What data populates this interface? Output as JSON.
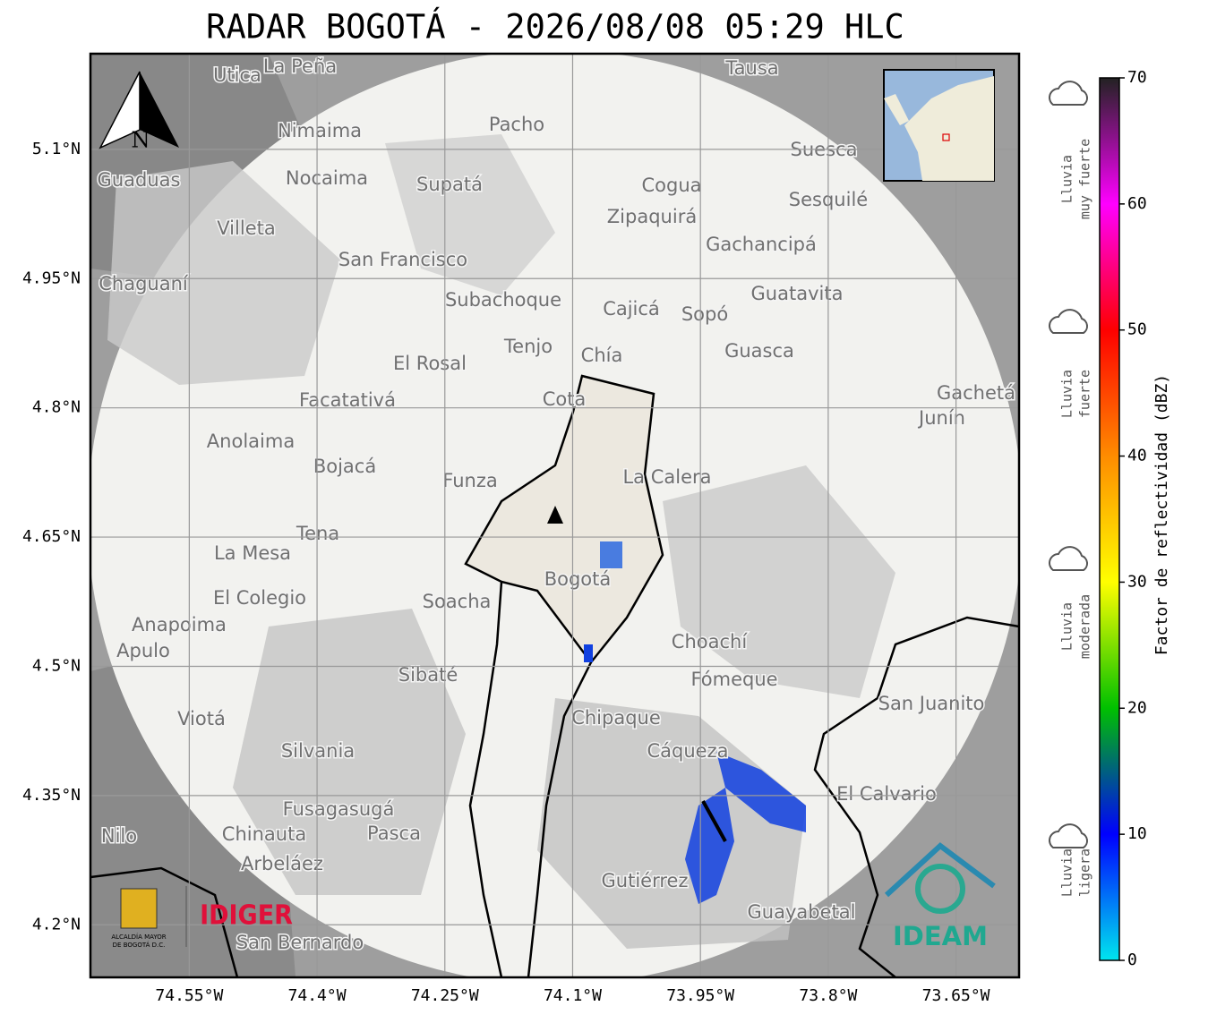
{
  "title": "RADAR BOGOTÁ - 2026/08/08 05:29 HLC",
  "map": {
    "lonlim": [
      -74.666,
      -73.576
    ],
    "latlim": [
      4.139,
      5.211
    ],
    "lat_ticks": [
      {
        "value": 5.1,
        "label": "5.1°N"
      },
      {
        "value": 4.95,
        "label": "4.95°N"
      },
      {
        "value": 4.8,
        "label": "4.8°N"
      },
      {
        "value": 4.65,
        "label": "4.65°N"
      },
      {
        "value": 4.5,
        "label": "4.5°N"
      },
      {
        "value": 4.35,
        "label": "4.35°N"
      },
      {
        "value": 4.2,
        "label": "4.2°N"
      }
    ],
    "lon_ticks": [
      {
        "value": -74.55,
        "label": "74.55°W"
      },
      {
        "value": -74.4,
        "label": "74.4°W"
      },
      {
        "value": -74.25,
        "label": "74.25°W"
      },
      {
        "value": -74.1,
        "label": "74.1°W"
      },
      {
        "value": -73.95,
        "label": "73.95°W"
      },
      {
        "value": -73.8,
        "label": "73.8°W"
      },
      {
        "value": -73.65,
        "label": "73.65°W"
      }
    ],
    "north": "N",
    "places": [
      "La Peña",
      "Utica",
      "Tausa",
      "Pacho",
      "Nimaima",
      "Guaduas",
      "Nocaima",
      "Supatá",
      "Suesca",
      "Cogua",
      "Zipaquirá",
      "Sesquilé",
      "Villeta",
      "Gachancipá",
      "San Francisco",
      "Chaguaní",
      "Guatavita",
      "Subachoque",
      "Cajicá",
      "Sopó",
      "Tenjo",
      "Guasca",
      "Chía",
      "El Rosal",
      "Cota",
      "Gachetá",
      "Facatativá",
      "Junín",
      "Anolaima",
      "Bojacá",
      "Funza",
      "La Calera",
      "Tena",
      "La Mesa",
      "Bogotá",
      "El Colegio",
      "Soacha",
      "Anapoima",
      "Apulo",
      "Choachí",
      "Sibaté",
      "Fómeque",
      "San Juanito",
      "Viotá",
      "Chipaque",
      "Silvania",
      "Cáqueza",
      "El Calvario",
      "Fusagasugá",
      "Chinauta",
      "Pasca",
      "Nilo",
      "Arbeláez",
      "Gutiérrez",
      "Guayabetal",
      "San Bernardo"
    ]
  },
  "colorbar": {
    "label": "Factor de reflectividad (dBZ)",
    "lim": [
      0,
      70
    ],
    "ticks": [
      0,
      10,
      20,
      30,
      40,
      50,
      60,
      70
    ],
    "colors": [
      "#00e5ee",
      "#0000ff",
      "#00c000",
      "#ffff00",
      "#ff8c00",
      "#ff0000",
      "#ff00ff",
      "#222222"
    ]
  },
  "rain_legend": [
    [
      "Lluvia",
      "muy fuerte"
    ],
    [
      "Lluvia",
      "fuerte"
    ],
    [
      "Lluvia",
      "moderada"
    ],
    [
      "Lluvia",
      "ligera"
    ]
  ],
  "logos": {
    "alcaldia": [
      "ALCALDÍA MAYOR",
      "DE BOGOTÁ D.C."
    ],
    "idiger": "IDIGER",
    "ideam": "IDEAM"
  }
}
